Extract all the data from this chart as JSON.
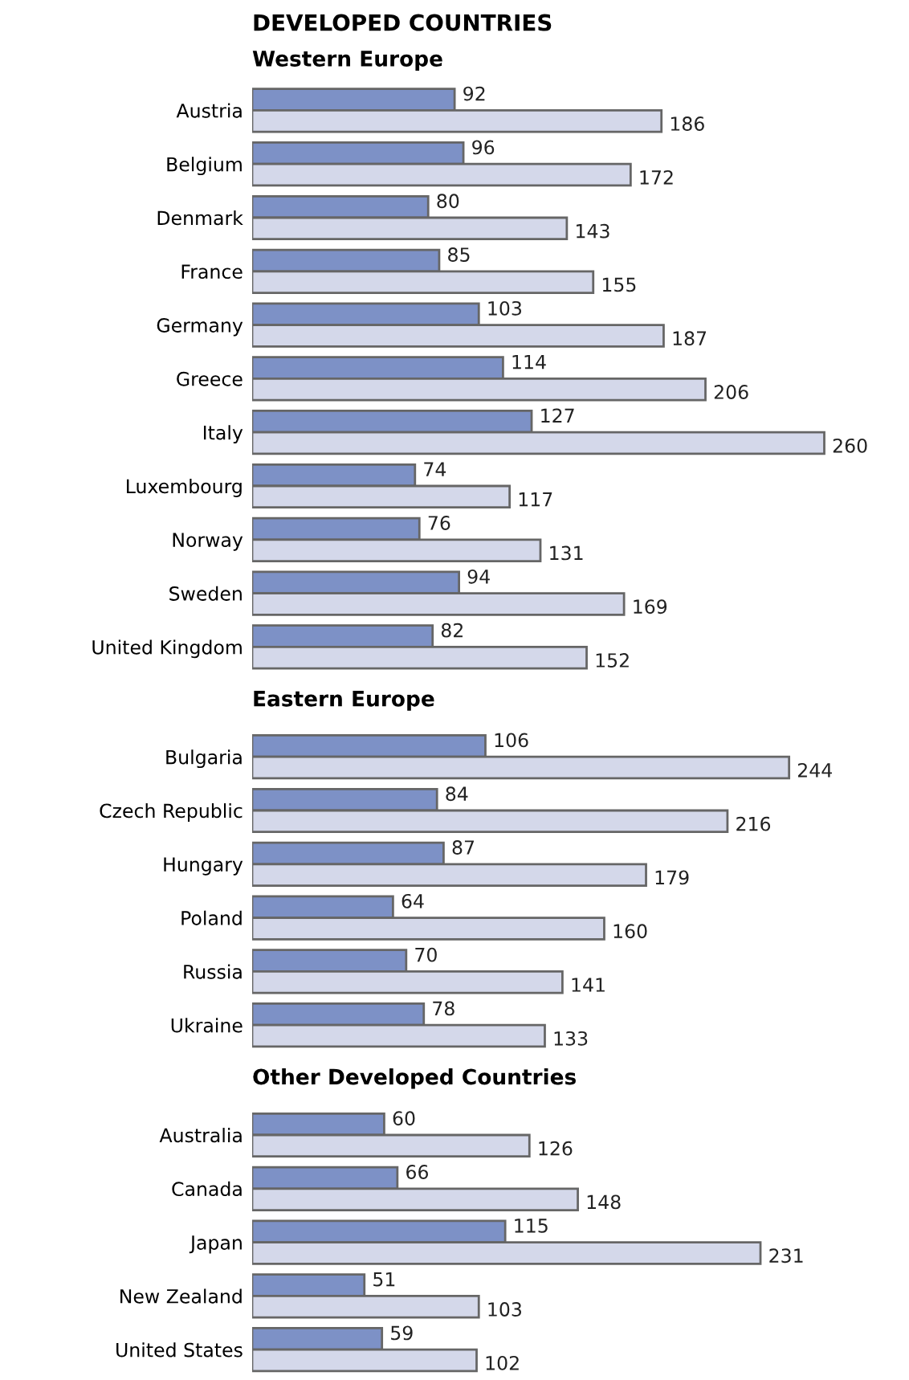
{
  "chart_data": [
    {
      "type": "bar",
      "orientation": "horizontal",
      "title": "DEVELOPED COUNTRIES",
      "subtitle": "Western Europe",
      "data_labels": true,
      "grid": false,
      "legend": false,
      "categories": [
        "Austria",
        "Belgium",
        "Denmark",
        "France",
        "Germany",
        "Greece",
        "Italy",
        "Luxembourg",
        "Norway",
        "Sweden",
        "United Kingdom"
      ],
      "series": [
        {
          "color": "#7d91c6",
          "values": [
            92,
            96,
            80,
            85,
            103,
            114,
            127,
            74,
            76,
            94,
            82
          ]
        },
        {
          "color": "#d4d8ea",
          "values": [
            186,
            172,
            143,
            155,
            187,
            206,
            260,
            117,
            131,
            169,
            152
          ]
        }
      ]
    },
    {
      "type": "bar",
      "orientation": "horizontal",
      "title": "Eastern Europe",
      "data_labels": true,
      "grid": false,
      "legend": false,
      "categories": [
        "Bulgaria",
        "Czech Republic",
        "Hungary",
        "Poland",
        "Russia",
        "Ukraine"
      ],
      "series": [
        {
          "color": "#7d91c6",
          "values": [
            106,
            84,
            87,
            64,
            70,
            78
          ]
        },
        {
          "color": "#d4d8ea",
          "values": [
            244,
            216,
            179,
            160,
            141,
            133
          ]
        }
      ]
    },
    {
      "type": "bar",
      "orientation": "horizontal",
      "title": "Other Developed Countries",
      "data_labels": true,
      "grid": false,
      "legend": false,
      "categories": [
        "Australia",
        "Canada",
        "Japan",
        "New Zealand",
        "United States"
      ],
      "series": [
        {
          "color": "#7d91c6",
          "values": [
            60,
            66,
            115,
            51,
            59
          ]
        },
        {
          "color": "#d4d8ea",
          "values": [
            126,
            148,
            231,
            103,
            102
          ]
        }
      ]
    }
  ]
}
